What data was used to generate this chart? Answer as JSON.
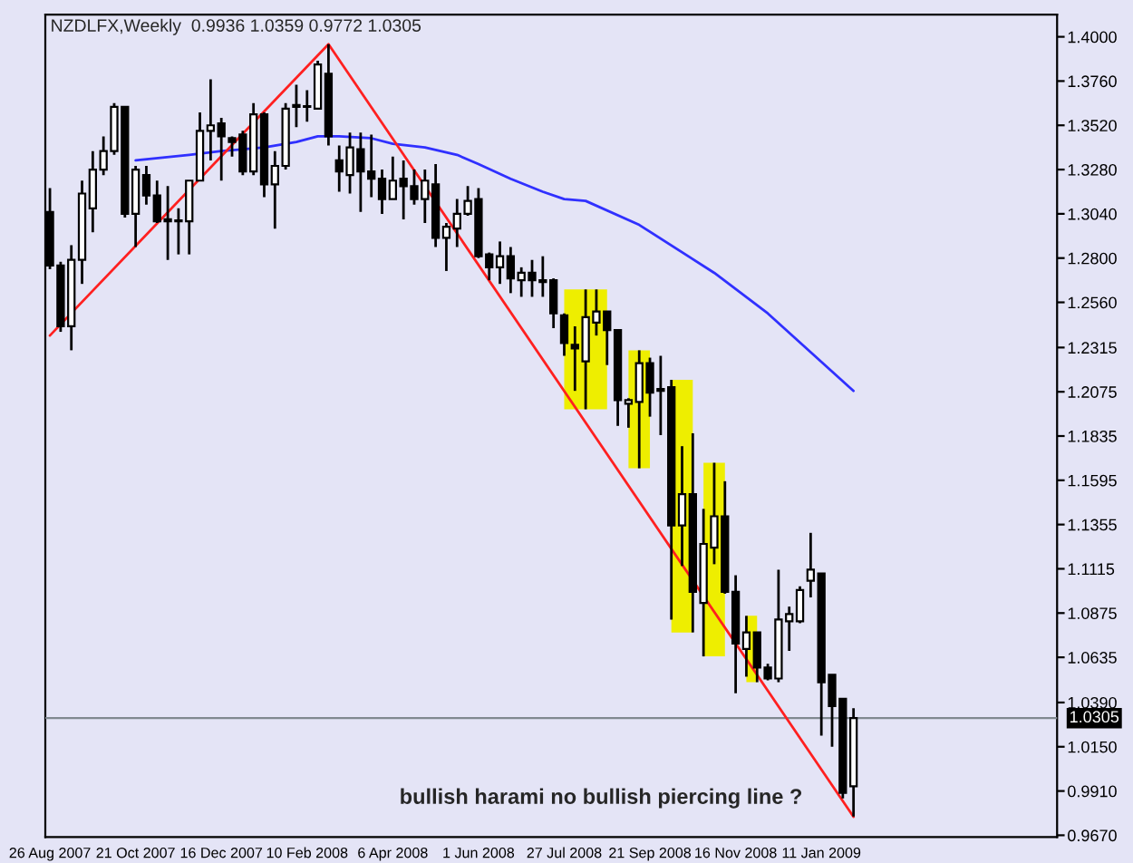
{
  "chart_data": {
    "type": "candlestick",
    "title": "NZDLFX,Weekly  0.9936 1.0359 0.9772 1.0305",
    "annotations": [
      "bullish harami no bullish piercing line ?"
    ],
    "x": [
      "2007-08-26",
      "2007-09-02",
      "2007-09-09",
      "2007-09-16",
      "2007-09-23",
      "2007-09-30",
      "2007-10-07",
      "2007-10-14",
      "2007-10-21",
      "2007-10-28",
      "2007-11-04",
      "2007-11-11",
      "2007-11-18",
      "2007-11-25",
      "2007-12-02",
      "2007-12-09",
      "2007-12-16",
      "2007-12-23",
      "2007-12-30",
      "2008-01-06",
      "2008-01-13",
      "2008-01-20",
      "2008-01-27",
      "2008-02-03",
      "2008-02-10",
      "2008-02-17",
      "2008-02-24",
      "2008-03-02",
      "2008-03-09",
      "2008-03-16",
      "2008-03-23",
      "2008-03-30",
      "2008-04-06",
      "2008-04-13",
      "2008-04-20",
      "2008-04-27",
      "2008-05-04",
      "2008-05-11",
      "2008-05-18",
      "2008-05-25",
      "2008-06-01",
      "2008-06-08",
      "2008-06-15",
      "2008-06-22",
      "2008-06-29",
      "2008-07-06",
      "2008-07-13",
      "2008-07-20",
      "2008-07-27",
      "2008-08-03",
      "2008-08-10",
      "2008-08-17",
      "2008-08-24",
      "2008-08-31",
      "2008-09-07",
      "2008-09-14",
      "2008-09-21",
      "2008-09-28",
      "2008-10-05",
      "2008-10-12",
      "2008-10-19",
      "2008-10-26",
      "2008-11-02",
      "2008-11-09",
      "2008-11-16",
      "2008-11-23",
      "2008-11-30",
      "2008-12-07",
      "2008-12-14",
      "2008-12-21",
      "2008-12-28",
      "2009-01-04",
      "2009-01-11",
      "2009-01-18",
      "2009-01-25",
      "2009-02-01"
    ],
    "ohlc": [
      [
        1.305,
        1.318,
        1.274,
        1.276
      ],
      [
        1.276,
        1.278,
        1.24,
        1.243
      ],
      [
        1.243,
        1.287,
        1.23,
        1.279
      ],
      [
        1.279,
        1.322,
        1.266,
        1.315
      ],
      [
        1.307,
        1.338,
        1.294,
        1.328
      ],
      [
        1.328,
        1.346,
        1.325,
        1.338
      ],
      [
        1.338,
        1.364,
        1.336,
        1.362
      ],
      [
        1.362,
        1.362,
        1.302,
        1.304
      ],
      [
        1.304,
        1.33,
        1.286,
        1.328
      ],
      [
        1.325,
        1.33,
        1.309,
        1.314
      ],
      [
        1.314,
        1.322,
        1.299,
        1.3
      ],
      [
        1.301,
        1.319,
        1.279,
        1.3
      ],
      [
        1.3,
        1.307,
        1.282,
        1.3
      ],
      [
        1.3,
        1.322,
        1.282,
        1.322
      ],
      [
        1.322,
        1.359,
        1.322,
        1.349
      ],
      [
        1.349,
        1.377,
        1.333,
        1.352
      ],
      [
        1.353,
        1.356,
        1.322,
        1.346
      ],
      [
        1.345,
        1.346,
        1.335,
        1.343
      ],
      [
        1.347,
        1.349,
        1.325,
        1.327
      ],
      [
        1.327,
        1.364,
        1.325,
        1.358
      ],
      [
        1.358,
        1.359,
        1.313,
        1.32
      ],
      [
        1.32,
        1.338,
        1.296,
        1.33
      ],
      [
        1.33,
        1.364,
        1.328,
        1.361
      ],
      [
        1.362,
        1.374,
        1.351,
        1.363
      ],
      [
        1.362,
        1.371,
        1.354,
        1.362
      ],
      [
        1.361,
        1.387,
        1.361,
        1.385
      ],
      [
        1.38,
        1.396,
        1.341,
        1.346
      ],
      [
        1.333,
        1.341,
        1.316,
        1.327
      ],
      [
        1.325,
        1.348,
        1.315,
        1.34
      ],
      [
        1.339,
        1.348,
        1.305,
        1.327
      ],
      [
        1.327,
        1.347,
        1.313,
        1.323
      ],
      [
        1.323,
        1.328,
        1.304,
        1.312
      ],
      [
        1.312,
        1.335,
        1.312,
        1.322
      ],
      [
        1.323,
        1.333,
        1.301,
        1.319
      ],
      [
        1.319,
        1.328,
        1.309,
        1.312
      ],
      [
        1.312,
        1.328,
        1.299,
        1.322
      ],
      [
        1.32,
        1.331,
        1.286,
        1.291
      ],
      [
        1.291,
        1.299,
        1.273,
        1.297
      ],
      [
        1.296,
        1.312,
        1.286,
        1.304
      ],
      [
        1.304,
        1.319,
        1.303,
        1.311
      ],
      [
        1.312,
        1.318,
        1.28,
        1.281
      ],
      [
        1.282,
        1.283,
        1.268,
        1.275
      ],
      [
        1.275,
        1.289,
        1.266,
        1.281
      ],
      [
        1.281,
        1.286,
        1.261,
        1.269
      ],
      [
        1.268,
        1.275,
        1.259,
        1.272
      ],
      [
        1.272,
        1.279,
        1.259,
        1.268
      ],
      [
        1.268,
        1.281,
        1.259,
        1.267
      ],
      [
        1.268,
        1.269,
        1.242,
        1.25
      ],
      [
        1.249,
        1.25,
        1.227,
        1.234
      ],
      [
        1.233,
        1.243,
        1.208,
        1.231
      ],
      [
        1.224,
        1.263,
        1.198,
        1.248
      ],
      [
        1.245,
        1.263,
        1.238,
        1.251
      ],
      [
        1.251,
        1.251,
        1.222,
        1.241
      ],
      [
        1.241,
        1.241,
        1.189,
        1.203
      ],
      [
        1.201,
        1.204,
        1.188,
        1.203
      ],
      [
        1.202,
        1.23,
        1.166,
        1.223
      ],
      [
        1.223,
        1.226,
        1.194,
        1.207
      ],
      [
        1.209,
        1.227,
        1.184,
        1.208
      ],
      [
        1.21,
        1.214,
        1.084,
        1.135
      ],
      [
        1.135,
        1.178,
        1.113,
        1.152
      ],
      [
        1.152,
        1.185,
        1.077,
        1.099
      ],
      [
        1.093,
        1.144,
        1.064,
        1.125
      ],
      [
        1.123,
        1.169,
        1.114,
        1.14
      ],
      [
        1.14,
        1.159,
        1.098,
        1.099
      ],
      [
        1.099,
        1.108,
        1.044,
        1.071
      ],
      [
        1.068,
        1.086,
        1.053,
        1.077
      ],
      [
        1.077,
        1.077,
        1.05,
        1.058
      ],
      [
        1.058,
        1.06,
        1.051,
        1.052
      ],
      [
        1.052,
        1.111,
        1.05,
        1.084
      ],
      [
        1.083,
        1.091,
        1.067,
        1.087
      ],
      [
        1.083,
        1.102,
        1.082,
        1.1
      ],
      [
        1.105,
        1.131,
        1.096,
        1.111
      ],
      [
        1.109,
        1.109,
        1.021,
        1.05
      ],
      [
        1.054,
        1.054,
        1.015,
        1.037
      ],
      [
        1.041,
        1.041,
        0.987,
        0.99
      ],
      [
        0.9936,
        1.0359,
        0.9772,
        1.0305
      ]
    ],
    "series": [
      {
        "type": "line",
        "color": "#3030ff",
        "x": [
          "2007-10-21",
          "2007-11-25",
          "2007-12-16",
          "2008-01-13",
          "2008-02-03",
          "2008-02-17",
          "2008-03-02",
          "2008-03-23",
          "2008-04-06",
          "2008-04-27",
          "2008-05-18",
          "2008-06-01",
          "2008-06-22",
          "2008-07-13",
          "2008-07-27",
          "2008-08-10",
          "2008-09-14",
          "2008-11-02",
          "2008-12-07",
          "2009-01-04",
          "2009-02-01"
        ],
        "values": [
          1.333,
          1.336,
          1.338,
          1.34,
          1.343,
          1.346,
          1.346,
          1.345,
          1.342,
          1.34,
          1.336,
          1.331,
          1.323,
          1.316,
          1.312,
          1.311,
          1.298,
          1.272,
          1.25,
          1.229,
          1.208
        ]
      },
      {
        "type": "line",
        "color": "#ff2020",
        "x": [
          "2007-08-26",
          "2008-02-24",
          "2009-02-01"
        ],
        "values": [
          1.238,
          1.396,
          0.977
        ]
      }
    ],
    "bands": [
      {
        "axis": "x",
        "from": "2008-07-27",
        "to": "2008-08-24",
        "color": "#eeee00"
      },
      {
        "axis": "x",
        "from": "2008-09-07",
        "to": "2008-09-21",
        "color": "#eeee00"
      },
      {
        "axis": "x",
        "from": "2008-10-05",
        "to": "2008-10-19",
        "color": "#eeee00"
      },
      {
        "axis": "x",
        "from": "2008-10-26",
        "to": "2008-11-09",
        "color": "#eeee00"
      },
      {
        "axis": "x",
        "from": "2008-11-23",
        "to": "2008-11-30",
        "color": "#eeee00"
      }
    ],
    "ref_lines": [
      {
        "axis": "y",
        "value": 1.0305,
        "label": "1.0305",
        "color": "#808890"
      }
    ],
    "xlim": [
      "2007-08-23",
      "2009-06-14"
    ],
    "xticks": [
      {
        "value": "2007-08-26",
        "label": "26 Aug 2007"
      },
      {
        "value": "2007-10-21",
        "label": "21 Oct 2007"
      },
      {
        "value": "2007-12-16",
        "label": "16 Dec 2007"
      },
      {
        "value": "2008-02-10",
        "label": "10 Feb 2008"
      },
      {
        "value": "2008-04-06",
        "label": "6 Apr 2008"
      },
      {
        "value": "2008-06-01",
        "label": "1 Jun 2008"
      },
      {
        "value": "2008-07-27",
        "label": "27 Jul 2008"
      },
      {
        "value": "2008-09-21",
        "label": "21 Sep 2008"
      },
      {
        "value": "2008-11-16",
        "label": "16 Nov 2008"
      },
      {
        "value": "2009-01-11",
        "label": "11 Jan 2009"
      }
    ],
    "ylim": [
      0.966,
      1.412
    ],
    "yticks": [
      {
        "value": 1.4,
        "label": "1.4000"
      },
      {
        "value": 1.376,
        "label": "1.3760"
      },
      {
        "value": 1.352,
        "label": "1.3520"
      },
      {
        "value": 1.328,
        "label": "1.3280"
      },
      {
        "value": 1.304,
        "label": "1.3040"
      },
      {
        "value": 1.28,
        "label": "1.2800"
      },
      {
        "value": 1.256,
        "label": "1.2560"
      },
      {
        "value": 1.2315,
        "label": "1.2315"
      },
      {
        "value": 1.2075,
        "label": "1.2075"
      },
      {
        "value": 1.1835,
        "label": "1.1835"
      },
      {
        "value": 1.1595,
        "label": "1.1595"
      },
      {
        "value": 1.1355,
        "label": "1.1355"
      },
      {
        "value": 1.1115,
        "label": "1.1115"
      },
      {
        "value": 1.0875,
        "label": "1.0875"
      },
      {
        "value": 1.0635,
        "label": "1.0635"
      },
      {
        "value": 1.039,
        "label": "1.0390"
      },
      {
        "value": 1.015,
        "label": "1.0150"
      },
      {
        "value": 0.991,
        "label": "0.9910"
      },
      {
        "value": 0.967,
        "label": "0.9670"
      }
    ],
    "grid": false,
    "legend": false
  }
}
